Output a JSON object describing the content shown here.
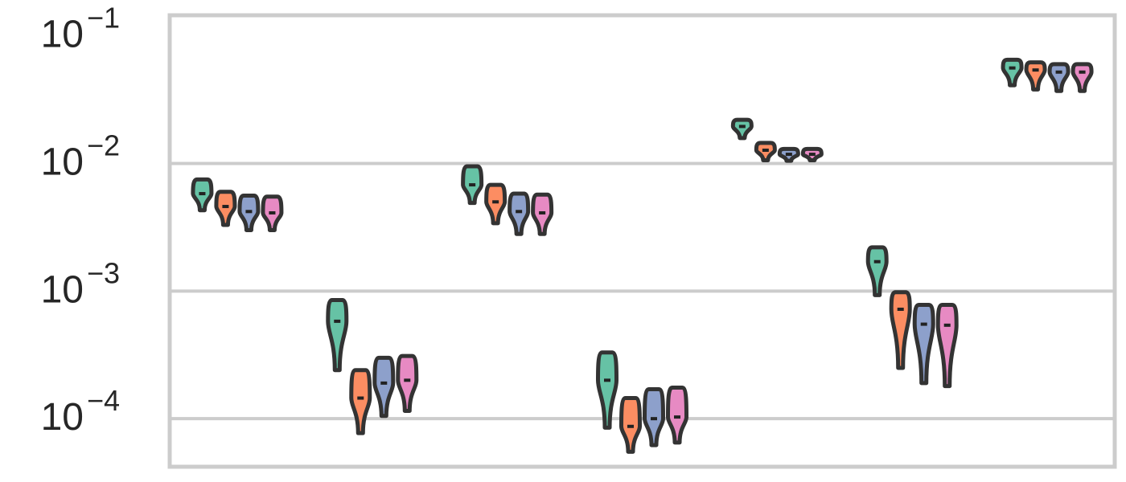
{
  "chart_data": {
    "type": "violin",
    "yscale": "log",
    "ylim": [
      4.2e-05,
      0.145
    ],
    "grid": true,
    "legend": "none",
    "yticks": [
      {
        "value": 0.1,
        "base": "10",
        "exp": "−1"
      },
      {
        "value": 0.01,
        "base": "10",
        "exp": "−2"
      },
      {
        "value": 0.001,
        "base": "10",
        "exp": "−3"
      },
      {
        "value": 0.0001,
        "base": "10",
        "exp": "−4"
      }
    ],
    "series_colors": [
      "#66c2a5",
      "#fc8d62",
      "#8da0cb",
      "#e78ac3"
    ],
    "groups": [
      {
        "violins": [
          {
            "center": 0.0058,
            "low": 0.0043,
            "high": 0.0075
          },
          {
            "center": 0.0046,
            "low": 0.0033,
            "high": 0.006
          },
          {
            "center": 0.0042,
            "low": 0.003,
            "high": 0.0056
          },
          {
            "center": 0.0041,
            "low": 0.003,
            "high": 0.0055
          }
        ]
      },
      {
        "violins": [
          {
            "center": 0.00058,
            "low": 0.00024,
            "high": 0.00085
          },
          {
            "center": 0.000145,
            "low": 7.7e-05,
            "high": 0.00024
          },
          {
            "center": 0.00019,
            "low": 0.000105,
            "high": 0.0003
          },
          {
            "center": 0.0002,
            "low": 0.000115,
            "high": 0.00031
          }
        ]
      },
      {
        "violins": [
          {
            "center": 0.0068,
            "low": 0.0049,
            "high": 0.0095
          },
          {
            "center": 0.005,
            "low": 0.0034,
            "high": 0.0068
          },
          {
            "center": 0.0042,
            "low": 0.0028,
            "high": 0.0058
          },
          {
            "center": 0.0041,
            "low": 0.0028,
            "high": 0.0057
          }
        ]
      },
      {
        "violins": [
          {
            "center": 0.0002,
            "low": 8.5e-05,
            "high": 0.00033
          },
          {
            "center": 8.7e-05,
            "low": 5.5e-05,
            "high": 0.000145
          },
          {
            "center": 0.0001,
            "low": 6.2e-05,
            "high": 0.00017
          },
          {
            "center": 0.000103,
            "low": 6.5e-05,
            "high": 0.000175
          }
        ]
      },
      {
        "violins": [
          {
            "center": 0.0195,
            "low": 0.0158,
            "high": 0.022
          },
          {
            "center": 0.0127,
            "low": 0.0106,
            "high": 0.0145
          },
          {
            "center": 0.0118,
            "low": 0.0105,
            "high": 0.013
          },
          {
            "center": 0.0118,
            "low": 0.0106,
            "high": 0.013
          }
        ]
      },
      {
        "violins": [
          {
            "center": 0.0017,
            "low": 0.00093,
            "high": 0.0022
          },
          {
            "center": 0.00072,
            "low": 0.00025,
            "high": 0.00098
          },
          {
            "center": 0.00055,
            "low": 0.00019,
            "high": 0.00078
          },
          {
            "center": 0.00054,
            "low": 0.00018,
            "high": 0.00078
          }
        ]
      },
      {
        "violins": [
          {
            "center": 0.056,
            "low": 0.041,
            "high": 0.065
          },
          {
            "center": 0.054,
            "low": 0.038,
            "high": 0.062
          },
          {
            "center": 0.052,
            "low": 0.037,
            "high": 0.06
          },
          {
            "center": 0.052,
            "low": 0.037,
            "high": 0.06
          }
        ]
      }
    ]
  }
}
